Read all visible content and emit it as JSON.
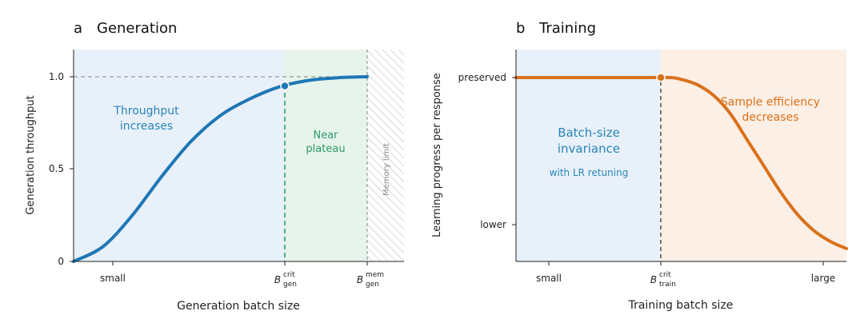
{
  "chart_data": [
    {
      "panel": "a",
      "title": "Generation",
      "type": "line",
      "xlabel": "Generation batch size",
      "ylabel": "Generation throughput",
      "x_ticks": [
        {
          "key": "small",
          "label": "small"
        },
        {
          "key": "crit",
          "label": "B",
          "sup": "crit",
          "sub": "gen"
        },
        {
          "key": "mem",
          "label": "B",
          "sup": "mem",
          "sub": "gen"
        }
      ],
      "y_ticks": [
        "0",
        "0.5",
        "1.0"
      ],
      "ylim": [
        0,
        1.15
      ],
      "reference_line": {
        "y": 1.0,
        "style": "dashed"
      },
      "series": [
        {
          "color": "#1f77b4",
          "x": [
            0,
            0.1,
            0.2,
            0.3,
            0.4,
            0.5,
            0.6,
            0.7,
            0.8,
            0.9,
            1.0
          ],
          "y": [
            0,
            0.08,
            0.25,
            0.46,
            0.65,
            0.79,
            0.88,
            0.945,
            0.98,
            0.995,
            1.0
          ]
        }
      ],
      "markers": [
        {
          "x": 0.64,
          "y": 0.95,
          "color": "#1f77b4"
        }
      ],
      "regions": [
        {
          "name": "throughput-region",
          "from": "start",
          "to": "crit",
          "color": "#e8f0fa",
          "label": [
            "Throughput",
            "increases"
          ],
          "label_color": "#2a86b5"
        },
        {
          "name": "plateau-region",
          "from": "crit",
          "to": "mem",
          "color": "#e6f4ec",
          "label": [
            "Near",
            "plateau"
          ],
          "label_color": "#2e9a67"
        },
        {
          "name": "memory-region",
          "from": "mem",
          "to": "end",
          "hatched": true,
          "label": [
            "Memory limit"
          ],
          "label_color": "#888888"
        }
      ]
    },
    {
      "panel": "b",
      "title": "Training",
      "type": "line",
      "xlabel": "Training batch size",
      "ylabel": "Learning progress per response",
      "x_ticks": [
        {
          "key": "small",
          "label": "small"
        },
        {
          "key": "crit",
          "label": "B",
          "sup": "crit",
          "sub": "train"
        },
        {
          "key": "large",
          "label": "large"
        }
      ],
      "y_ticks": [
        "lower",
        "preserved"
      ],
      "series": [
        {
          "color": "#d9711c",
          "x": [
            0,
            0.1,
            0.2,
            0.3,
            0.4,
            0.47,
            0.5,
            0.55,
            0.6,
            0.65,
            0.7,
            0.75,
            0.8,
            0.85,
            0.9,
            0.95,
            1.0
          ],
          "y": [
            1,
            1,
            1,
            1,
            1,
            1,
            0.99,
            0.96,
            0.9,
            0.8,
            0.66,
            0.52,
            0.38,
            0.26,
            0.17,
            0.11,
            0.07
          ]
        }
      ],
      "markers": [
        {
          "x": 0.47,
          "y": 1,
          "color": "#d9711c"
        }
      ],
      "regions": [
        {
          "name": "invariance-region",
          "from": "start",
          "to": "crit",
          "color": "#e8f0fa",
          "label": [
            "Batch-size",
            "invariance"
          ],
          "sublabel": "with LR retuning",
          "label_color": "#2a86b5"
        },
        {
          "name": "efficiency-region",
          "from": "crit",
          "to": "end",
          "color": "#fcefe5",
          "label": [
            "Sample efficiency",
            "decreases"
          ],
          "label_color": "#d9711c"
        }
      ]
    }
  ]
}
